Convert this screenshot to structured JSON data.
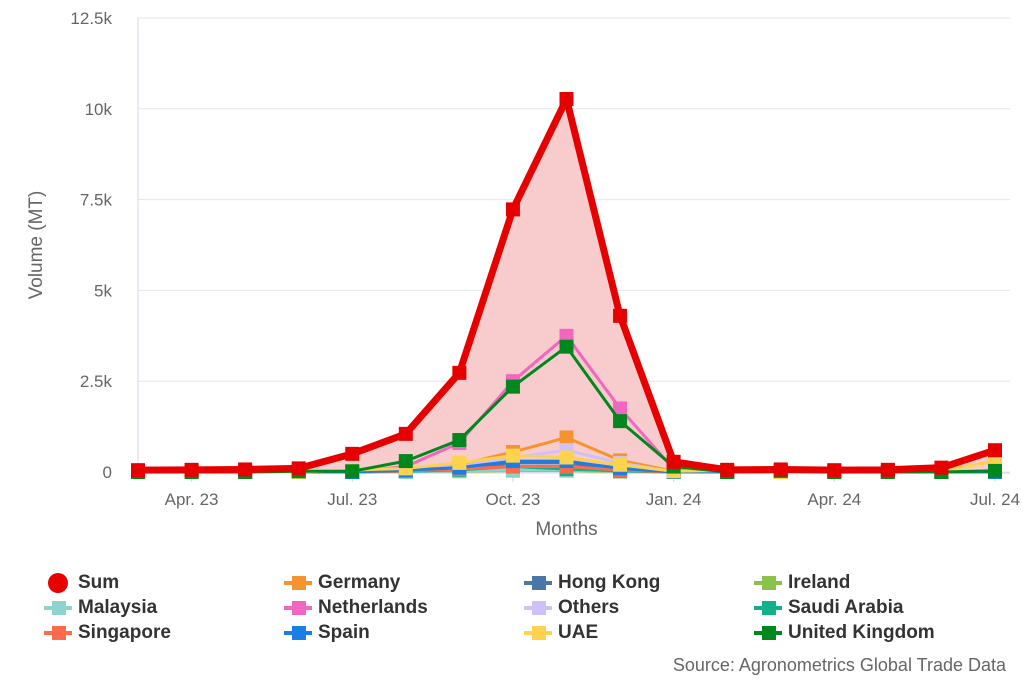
{
  "chart_data": {
    "type": "line",
    "xlabel": "Months",
    "ylabel": "Volume (MT)",
    "ylim": [
      0,
      12500
    ],
    "y_ticks": [
      "0",
      "2.5k",
      "5k",
      "7.5k",
      "10k",
      "12.5k"
    ],
    "x_ticks": [
      "Apr. 23",
      "Jul. 23",
      "Oct. 23",
      "Jan. 24",
      "Apr. 24",
      "Jul. 24"
    ],
    "categories": [
      "Mar 23",
      "Apr 23",
      "May 23",
      "Jun 23",
      "Jul 23",
      "Aug 23",
      "Sep 23",
      "Oct 23",
      "Nov 23",
      "Dec 23",
      "Jan 24",
      "Feb 24",
      "Mar 24",
      "Apr 24",
      "May 24",
      "Jun 24",
      "Jul 24"
    ],
    "grid": "horizontal",
    "legend_position": "bottom",
    "series": [
      {
        "name": "Sum",
        "color": "#e60000",
        "values": [
          50,
          60,
          70,
          100,
          500,
          1050,
          2730,
          7230,
          10270,
          4300,
          280,
          60,
          70,
          50,
          60,
          120,
          600
        ]
      },
      {
        "name": "Germany",
        "color": "#f7932f",
        "values": [
          0,
          0,
          0,
          0,
          0,
          50,
          200,
          550,
          950,
          320,
          20,
          0,
          0,
          0,
          0,
          0,
          50
        ]
      },
      {
        "name": "Hong Kong",
        "color": "#4a76a8",
        "values": [
          0,
          0,
          0,
          0,
          0,
          30,
          100,
          250,
          250,
          80,
          0,
          0,
          0,
          0,
          0,
          0,
          0
        ]
      },
      {
        "name": "Ireland",
        "color": "#8bc34a",
        "values": [
          0,
          0,
          0,
          0,
          0,
          10,
          20,
          40,
          40,
          10,
          0,
          0,
          0,
          0,
          0,
          0,
          0
        ]
      },
      {
        "name": "Malaysia",
        "color": "#8fd3d0",
        "values": [
          0,
          0,
          0,
          0,
          0,
          10,
          30,
          60,
          60,
          20,
          0,
          0,
          0,
          0,
          0,
          0,
          0
        ]
      },
      {
        "name": "Netherlands",
        "color": "#f266c0",
        "values": [
          0,
          0,
          0,
          0,
          0,
          150,
          800,
          2500,
          3750,
          1750,
          80,
          0,
          0,
          0,
          0,
          0,
          0
        ]
      },
      {
        "name": "Others",
        "color": "#cfc0f7",
        "values": [
          0,
          0,
          0,
          0,
          0,
          50,
          150,
          400,
          600,
          250,
          0,
          0,
          0,
          0,
          50,
          0,
          50
        ]
      },
      {
        "name": "Saudi Arabia",
        "color": "#11b28a",
        "values": [
          0,
          0,
          0,
          0,
          0,
          20,
          60,
          150,
          80,
          30,
          0,
          0,
          0,
          0,
          0,
          0,
          0
        ]
      },
      {
        "name": "Singapore",
        "color": "#ff6b4a",
        "values": [
          0,
          40,
          50,
          0,
          0,
          30,
          80,
          150,
          150,
          50,
          0,
          0,
          0,
          40,
          0,
          0,
          0
        ]
      },
      {
        "name": "Spain",
        "color": "#1a7ee6",
        "values": [
          0,
          0,
          0,
          0,
          0,
          50,
          120,
          300,
          300,
          100,
          0,
          0,
          0,
          0,
          0,
          0,
          0
        ]
      },
      {
        "name": "UAE",
        "color": "#fdd24f",
        "values": [
          50,
          0,
          0,
          0,
          50,
          100,
          250,
          450,
          400,
          200,
          20,
          40,
          0,
          0,
          0,
          40,
          300
        ]
      },
      {
        "name": "United Kingdom",
        "color": "#00871e",
        "values": [
          0,
          0,
          0,
          20,
          20,
          300,
          880,
          2350,
          3450,
          1400,
          150,
          0,
          30,
          0,
          0,
          0,
          30
        ]
      }
    ]
  },
  "source": "Source: Agronometrics Global Trade Data"
}
